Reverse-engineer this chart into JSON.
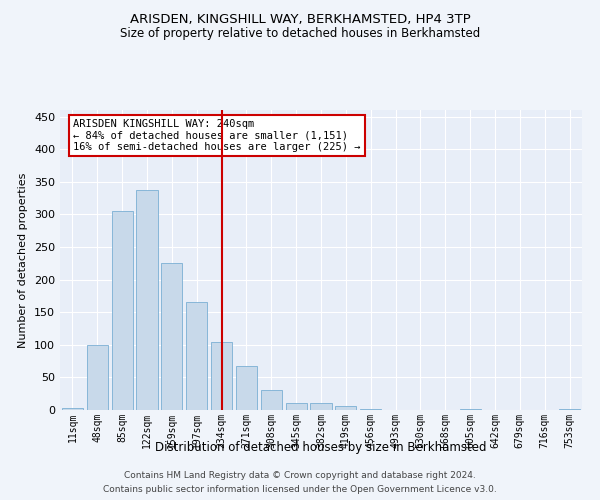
{
  "title": "ARISDEN, KINGSHILL WAY, BERKHAMSTED, HP4 3TP",
  "subtitle": "Size of property relative to detached houses in Berkhamsted",
  "xlabel": "Distribution of detached houses by size in Berkhamsted",
  "ylabel": "Number of detached properties",
  "footer_line1": "Contains HM Land Registry data © Crown copyright and database right 2024.",
  "footer_line2": "Contains public sector information licensed under the Open Government Licence v3.0.",
  "annotation_title": "ARISDEN KINGSHILL WAY: 240sqm",
  "annotation_line2": "← 84% of detached houses are smaller (1,151)",
  "annotation_line3": "16% of semi-detached houses are larger (225) →",
  "bar_labels": [
    "11sqm",
    "48sqm",
    "85sqm",
    "122sqm",
    "159sqm",
    "197sqm",
    "234sqm",
    "271sqm",
    "308sqm",
    "345sqm",
    "382sqm",
    "419sqm",
    "456sqm",
    "493sqm",
    "530sqm",
    "568sqm",
    "605sqm",
    "642sqm",
    "679sqm",
    "716sqm",
    "753sqm"
  ],
  "bar_values": [
    3,
    99,
    305,
    338,
    225,
    166,
    105,
    67,
    31,
    10,
    10,
    6,
    2,
    0,
    0,
    0,
    2,
    0,
    0,
    0,
    2
  ],
  "bar_color": "#c8d9ea",
  "bar_edge_color": "#7aafd4",
  "vline_color": "#cc0000",
  "vline_index": 6,
  "ylim": [
    0,
    460
  ],
  "yticks": [
    0,
    50,
    100,
    150,
    200,
    250,
    300,
    350,
    400,
    450
  ],
  "bg_color": "#f0f4fa",
  "plot_bg_color": "#e8eef8",
  "grid_color": "#ffffff",
  "title_fontsize": 9.5,
  "subtitle_fontsize": 8.5,
  "annotation_box_color": "#ffffff",
  "annotation_box_edge": "#cc0000"
}
